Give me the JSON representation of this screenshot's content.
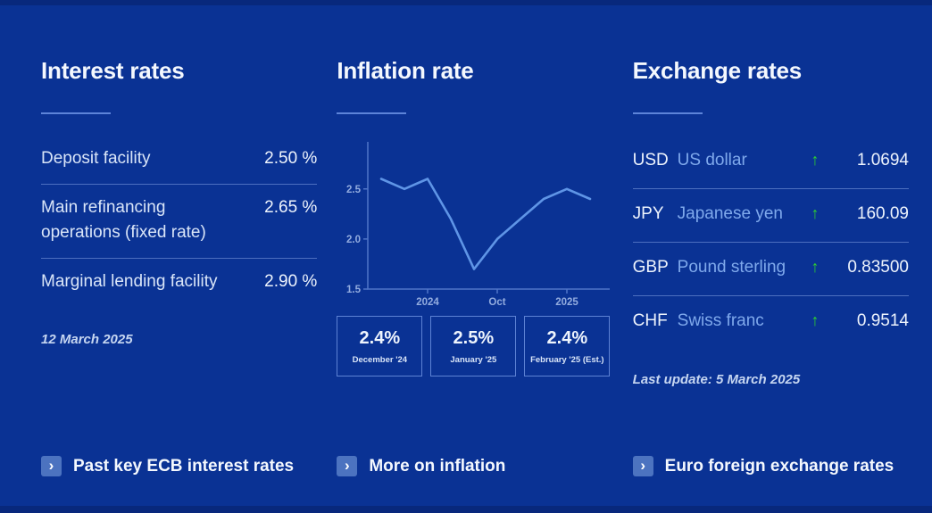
{
  "colors": {
    "background": "#0a3294",
    "edge_strip": "#08287c",
    "accent_underline": "#5d84d9",
    "divider": "#4d6fc0",
    "heading": "#f4f8fe",
    "body_text": "#d9e5f8",
    "value_text": "#eef4fd",
    "muted_date": "#c6d6f1",
    "link_blue": "#7fa9ec",
    "chart_line": "#5f95e6",
    "chart_axis": "#4f74c8",
    "chart_label": "#93acdf",
    "green_up": "#2fd12f",
    "chevron_badge": "#4c73c0",
    "box_border": "#5d82d4"
  },
  "icons": {
    "up_arrow": "↑",
    "chevron_right": "›"
  },
  "interest_rates": {
    "title": "Interest rates",
    "rows": [
      {
        "label": "Deposit facility",
        "value": "2.50 %"
      },
      {
        "label": "Main refinancing operations (fixed rate)",
        "value": "2.65 %"
      },
      {
        "label": "Marginal lending facility",
        "value": "2.90 %"
      }
    ],
    "date": "12 March 2025",
    "link": "Past key ECB interest rates"
  },
  "inflation": {
    "title": "Inflation rate",
    "boxes": [
      {
        "value": "2.4%",
        "label": "December '24"
      },
      {
        "value": "2.5%",
        "label": "January '25"
      },
      {
        "value": "2.4%",
        "label": "February '25 (Est.)"
      }
    ],
    "link": "More on inflation"
  },
  "chart_data": {
    "type": "line",
    "title": "Inflation rate",
    "values": [
      2.6,
      2.5,
      2.6,
      2.2,
      1.7,
      2.0,
      2.2,
      2.4,
      2.5,
      2.4
    ],
    "x_ticks": [
      {
        "index": 2,
        "label": "2024"
      },
      {
        "index": 5,
        "label": "Oct"
      },
      {
        "index": 8,
        "label": "2025"
      }
    ],
    "y_ticks": [
      "1.5",
      "2.0",
      "2.5"
    ],
    "ylim": [
      1.5,
      2.97
    ],
    "grid": false,
    "legend": false,
    "line_color": "#5f95e6"
  },
  "exchange_rates": {
    "title": "Exchange rates",
    "rows": [
      {
        "code": "USD",
        "name": "US dollar",
        "direction": "up",
        "value": "1.0694"
      },
      {
        "code": "JPY",
        "name": "Japanese yen",
        "direction": "up",
        "value": "160.09"
      },
      {
        "code": "GBP",
        "name": "Pound sterling",
        "direction": "up",
        "value": "0.83500"
      },
      {
        "code": "CHF",
        "name": "Swiss franc",
        "direction": "up",
        "value": "0.9514"
      }
    ],
    "last_update": "Last update: 5 March 2025",
    "link": "Euro foreign exchange rates"
  }
}
